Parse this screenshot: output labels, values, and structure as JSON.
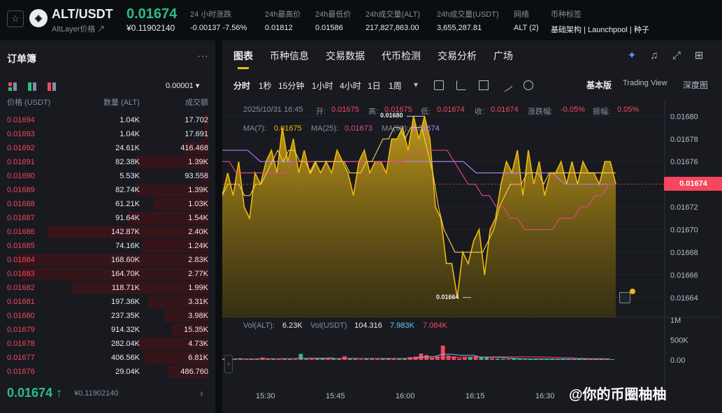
{
  "header": {
    "symbol": "ALT/USDT",
    "subtitle": "AltLayer价格 ↗",
    "price": "0.01674",
    "price_usd": "¥0.11902140",
    "stats": [
      {
        "label": "24 小时涨跌",
        "value": "-0.00137 -7.56%"
      },
      {
        "label": "24h最高价",
        "value": "0.01812"
      },
      {
        "label": "24h最低价",
        "value": "0.01586"
      },
      {
        "label": "24h成交量(ALT)",
        "value": "217,827,863.00"
      },
      {
        "label": "24h成交量(USDT)",
        "value": "3,655,287.81"
      },
      {
        "label": "网络",
        "value": "ALT (2)"
      },
      {
        "label": "币种标签",
        "value": "基础架构 | Launchpool | 种子"
      }
    ]
  },
  "orderbook": {
    "title": "订单簿",
    "tick": "0.00001",
    "headers": [
      "价格 (USDT)",
      "数量 (ALT)",
      "成交额"
    ],
    "rows": [
      {
        "p": "0.01694",
        "q": "1.04K",
        "t": "17.702",
        "d": 0.02
      },
      {
        "p": "0.01693",
        "q": "1.04K",
        "t": "17.691",
        "d": 0.02
      },
      {
        "p": "0.01692",
        "q": "24.61K",
        "t": "416.468",
        "d": 0.12
      },
      {
        "p": "0.01691",
        "q": "82.38K",
        "t": "1.39K",
        "d": 0.36
      },
      {
        "p": "0.01690",
        "q": "5.53K",
        "t": "93.558",
        "d": 0.03
      },
      {
        "p": "0.01689",
        "q": "82.74K",
        "t": "1.39K",
        "d": 0.36
      },
      {
        "p": "0.01688",
        "q": "61.21K",
        "t": "1.03K",
        "d": 0.27
      },
      {
        "p": "0.01687",
        "q": "91.64K",
        "t": "1.54K",
        "d": 0.4
      },
      {
        "p": "0.01686",
        "q": "142.87K",
        "t": "2.40K",
        "d": 0.8
      },
      {
        "p": "0.01685",
        "q": "74.16K",
        "t": "1.24K",
        "d": 0.33
      },
      {
        "p": "0.01684",
        "q": "168.60K",
        "t": "2.83K",
        "d": 0.95
      },
      {
        "p": "0.01683",
        "q": "164.70K",
        "t": "2.77K",
        "d": 0.93
      },
      {
        "p": "0.01682",
        "q": "118.71K",
        "t": "1.99K",
        "d": 0.68
      },
      {
        "p": "0.01681",
        "q": "197.36K",
        "t": "3.31K",
        "d": 0.3
      },
      {
        "p": "0.01680",
        "q": "237.35K",
        "t": "3.98K",
        "d": 0.22
      },
      {
        "p": "0.01679",
        "q": "914.32K",
        "t": "15.35K",
        "d": 0.18
      },
      {
        "p": "0.01678",
        "q": "282.04K",
        "t": "4.73K",
        "d": 0.35
      },
      {
        "p": "0.01677",
        "q": "406.56K",
        "t": "6.81K",
        "d": 0.32
      },
      {
        "p": "0.01676",
        "q": "29.04K",
        "t": "486.760",
        "d": 0.2
      }
    ],
    "last_price": "0.01674 ↑",
    "last_usd": "¥0.11902140"
  },
  "chart_tabs": [
    "图表",
    "币种信息",
    "交易数据",
    "代币检测",
    "交易分析",
    "广场"
  ],
  "toolbar": {
    "intervals": [
      "分时",
      "1秒",
      "15分钟",
      "1小时",
      "4小时",
      "1日",
      "1周"
    ],
    "views": [
      "基本版",
      "Trading View",
      "深度图"
    ]
  },
  "ohlc": {
    "date": "2025/10/31 16:45",
    "o_label": "开:",
    "o": "0.01675",
    "h_label": "高:",
    "h": "0.01675",
    "l_label": "低:",
    "l": "0.01674",
    "c_label": "收:",
    "c": "0.01674",
    "chg_label": "涨跌幅:",
    "chg": "-0.05%",
    "amp_label": "振幅:",
    "amp": "0.05%"
  },
  "ma": {
    "ma7_label": "MA(7):",
    "ma7": "0.01675",
    "ma25_label": "MA(25):",
    "ma25": "0.01673",
    "ma99_label": "MA(99):",
    "ma99": "0.01674"
  },
  "vol": {
    "alt_label": "Vol(ALT):",
    "alt": "6.23K",
    "usdt_label": "Vol(USDT)",
    "usdt": "104.316",
    "v1": "7.983K",
    "v2": "7.084K"
  },
  "current_price_tag": "0.01674",
  "high_marker": "0.01680",
  "low_marker": "0.01664",
  "watermark": "@你的币圈柚柚",
  "chart_data": {
    "type": "area",
    "x_ticks": [
      "15:30",
      "15:45",
      "16:00",
      "16:15",
      "16:30"
    ],
    "y_ticks": [
      0.0168,
      0.01678,
      0.01676,
      0.01674,
      0.01672,
      0.0167,
      0.01668,
      0.01666,
      0.01664
    ],
    "ylim": [
      0.01663,
      0.016815
    ],
    "price": [
      0.01673,
      0.01675,
      0.01673,
      0.01676,
      0.01672,
      0.01671,
      0.01675,
      0.01674,
      0.01676,
      0.01677,
      0.01675,
      0.01679,
      0.01676,
      0.01678,
      0.01675,
      0.01677,
      0.01675,
      0.01676,
      0.01675,
      0.01676,
      0.01675,
      0.01677,
      0.01676,
      0.01675,
      0.01673,
      0.01676,
      0.01677,
      0.01675,
      0.01676,
      0.01676,
      0.01675,
      0.01678,
      0.01678,
      0.01679,
      0.01677,
      0.0168,
      0.01678,
      0.0168,
      0.01678,
      0.01672,
      0.01671,
      0.01667,
      0.01667,
      0.01664,
      0.01668,
      0.01667,
      0.01669,
      0.0167,
      0.01666,
      0.0167,
      0.01671,
      0.01674,
      0.01676,
      0.01675,
      0.01677,
      0.01673,
      0.01677,
      0.01674,
      0.01676,
      0.01673,
      0.01675,
      0.01675,
      0.01676,
      0.01674,
      0.01676,
      0.01674,
      0.01676,
      0.01675,
      0.01675,
      0.01674,
      0.01676,
      0.01676,
      0.01674
    ],
    "ma7": [
      0.01673,
      0.01674,
      0.01674,
      0.01674,
      0.01673,
      0.01673,
      0.01674,
      0.01674,
      0.01675,
      0.01676,
      0.01677,
      0.01676,
      0.01677,
      0.01677,
      0.01676,
      0.01676,
      0.01675,
      0.01676,
      0.01676,
      0.01676,
      0.01676,
      0.01676,
      0.01676,
      0.01675,
      0.01675,
      0.01675,
      0.01676,
      0.01676,
      0.01677,
      0.01678,
      0.01678,
      0.01679,
      0.01679,
      0.01678,
      0.01679,
      0.01679,
      0.01679,
      0.01677,
      0.01675,
      0.01672,
      0.0167,
      0.01669,
      0.01668,
      0.01668,
      0.01668,
      0.01668,
      0.01668,
      0.01668,
      0.01669,
      0.0167,
      0.01672,
      0.01673,
      0.01674,
      0.01674,
      0.01674,
      0.01675,
      0.01675,
      0.01675,
      0.01674,
      0.01675,
      0.01675,
      0.01675,
      0.01675,
      0.01675,
      0.01675,
      0.01675,
      0.01675,
      0.01675,
      0.01675,
      0.01675,
      0.01675,
      0.01675
    ],
    "ma25": [
      0.01676,
      0.01676,
      0.01675,
      0.01675,
      0.01675,
      0.01675,
      0.01675,
      0.01675,
      0.01675,
      0.01675,
      0.01676,
      0.01676,
      0.01676,
      0.01676,
      0.01676,
      0.01676,
      0.01676,
      0.01676,
      0.01676,
      0.01676,
      0.01676,
      0.01676,
      0.01676,
      0.01676,
      0.01676,
      0.01676,
      0.01676,
      0.01677,
      0.01677,
      0.01677,
      0.01677,
      0.01677,
      0.01677,
      0.01676,
      0.01675,
      0.01674,
      0.01674,
      0.01673,
      0.01673,
      0.01672,
      0.01672,
      0.01671,
      0.01671,
      0.0167,
      0.0167,
      0.0167,
      0.0167,
      0.0167,
      0.01671,
      0.01671,
      0.01671,
      0.01672,
      0.01672,
      0.01673,
      0.01673,
      0.01674,
      0.01674
    ],
    "ma99": [
      0.01677,
      0.01677,
      0.01677,
      0.01676,
      0.01676,
      0.01676,
      0.01676,
      0.01676,
      0.01676,
      0.01676,
      0.01676,
      0.01676,
      0.01676,
      0.01676,
      0.01676,
      0.01676,
      0.01676,
      0.01676,
      0.01676,
      0.01676,
      0.01675,
      0.01675,
      0.01675,
      0.01675,
      0.01675,
      0.01675,
      0.01675,
      0.01674,
      0.01674,
      0.01674,
      0.01674,
      0.01674
    ],
    "volume": [
      25,
      30,
      20,
      40,
      15,
      18,
      22,
      60,
      20,
      25,
      30,
      35,
      20,
      18,
      150,
      22,
      25,
      30,
      40,
      28,
      35,
      30,
      90,
      30,
      25,
      20,
      30,
      35,
      25,
      40,
      45,
      30,
      35,
      40,
      70,
      80,
      160,
      120,
      60,
      90,
      360,
      110,
      90,
      40,
      60,
      80,
      90,
      70,
      80,
      40,
      30,
      25,
      20,
      30,
      20,
      15,
      25,
      20,
      30,
      20,
      15,
      20,
      25,
      20,
      15,
      20,
      25,
      20,
      15,
      18,
      20,
      15
    ],
    "vol_ylim": [
      0,
      1000000
    ],
    "vol_ticks": [
      "1M",
      "500K",
      "0.00"
    ]
  },
  "colors": {
    "up": "#2ebd85",
    "down": "#f6465d",
    "accent": "#f0b90b",
    "ma25": "#e8488a",
    "ma99": "#b388ff"
  }
}
